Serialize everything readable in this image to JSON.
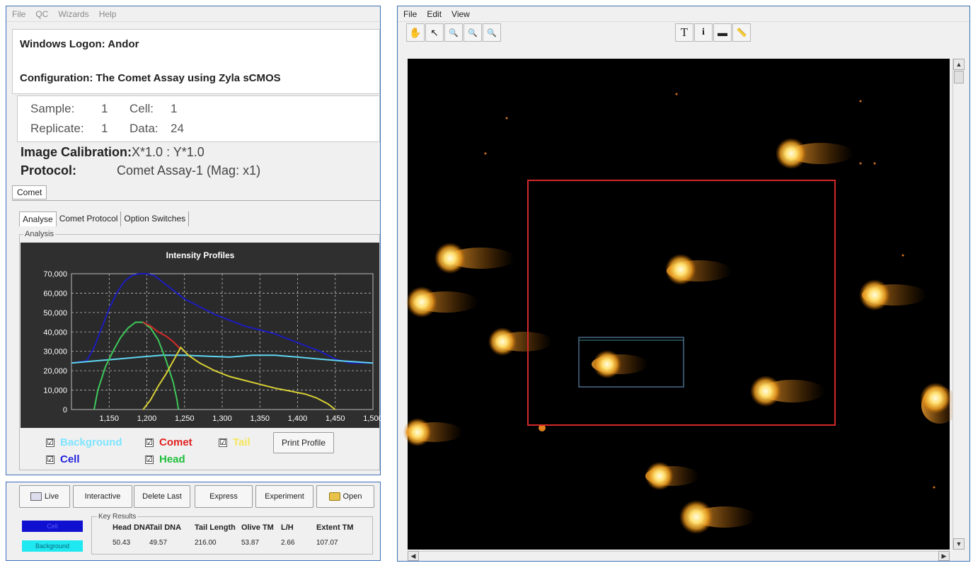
{
  "left_panel": {
    "menu": [
      "File",
      "QC",
      "Wizards",
      "Help"
    ],
    "logon_label": "Windows Logon:",
    "logon_value": "Andor",
    "config_label": "Configuration:",
    "config_value": "The Comet Assay using Zyla sCMOS",
    "sample": {
      "sample_label": "Sample:",
      "sample_value": "1",
      "cell_label": "Cell:",
      "cell_value": "1",
      "replicate_label": "Replicate:",
      "replicate_value": "1",
      "data_label": "Data:",
      "data_value": "24"
    },
    "calibration_label": "Image Calibration:",
    "calibration_value": "X*1.0 : Y*1.0",
    "protocol_label": "Protocol:",
    "protocol_value": "Comet Assay-1 (Mag: x1)",
    "main_tab": "Comet",
    "sub_tabs": [
      "Analyse",
      "Comet Protocol",
      "Option Switches"
    ],
    "group_label": "Analysis",
    "checkboxes": [
      {
        "label": "Background",
        "color": "#7fe5ff",
        "checked": true
      },
      {
        "label": "Comet",
        "color": "#e02020",
        "checked": true
      },
      {
        "label": "Tail",
        "color": "#f5e65a",
        "checked": true
      },
      {
        "label": "Cell",
        "color": "#2222dd",
        "checked": true
      },
      {
        "label": "Head",
        "color": "#1fbf3a",
        "checked": true
      }
    ],
    "print_button": "Print Profile",
    "check_glyph": "☑"
  },
  "chart_data": {
    "type": "line",
    "title": "Intensity Profiles",
    "xlabel": "",
    "ylabel": "",
    "xlim": [
      1100,
      1500
    ],
    "ylim": [
      0,
      70000
    ],
    "x_ticks": [
      "1,150",
      "1,200",
      "1,250",
      "1,300",
      "1,350",
      "1,400",
      "1,450",
      "1,500"
    ],
    "y_ticks": [
      "0",
      "10,000",
      "20,000",
      "30,000",
      "40,000",
      "50,000",
      "60,000",
      "70,000"
    ],
    "grid": true,
    "series": [
      {
        "name": "Cell",
        "color": "#1c1cbf",
        "points": [
          [
            1100,
            24000
          ],
          [
            1120,
            25000
          ],
          [
            1130,
            32000
          ],
          [
            1140,
            42000
          ],
          [
            1150,
            52000
          ],
          [
            1160,
            60000
          ],
          [
            1170,
            66000
          ],
          [
            1180,
            69000
          ],
          [
            1190,
            70000
          ],
          [
            1200,
            70000
          ],
          [
            1210,
            69000
          ],
          [
            1220,
            66000
          ],
          [
            1230,
            63000
          ],
          [
            1240,
            60000
          ],
          [
            1250,
            57000
          ],
          [
            1270,
            53000
          ],
          [
            1290,
            49000
          ],
          [
            1310,
            46000
          ],
          [
            1330,
            43000
          ],
          [
            1350,
            41000
          ],
          [
            1370,
            39000
          ],
          [
            1390,
            36000
          ],
          [
            1410,
            33000
          ],
          [
            1430,
            30000
          ],
          [
            1450,
            26000
          ],
          [
            1470,
            24000
          ],
          [
            1500,
            24000
          ]
        ]
      },
      {
        "name": "Background",
        "color": "#5fd6f0",
        "points": [
          [
            1100,
            24000
          ],
          [
            1130,
            25000
          ],
          [
            1160,
            26000
          ],
          [
            1190,
            27000
          ],
          [
            1220,
            28000
          ],
          [
            1250,
            28000
          ],
          [
            1280,
            27500
          ],
          [
            1310,
            27000
          ],
          [
            1340,
            28000
          ],
          [
            1370,
            28000
          ],
          [
            1400,
            27000
          ],
          [
            1430,
            26000
          ],
          [
            1460,
            25000
          ],
          [
            1500,
            24000
          ]
        ]
      },
      {
        "name": "Head",
        "color": "#3ec85a",
        "points": [
          [
            1130,
            0
          ],
          [
            1135,
            10000
          ],
          [
            1145,
            22000
          ],
          [
            1155,
            30000
          ],
          [
            1165,
            37000
          ],
          [
            1175,
            42000
          ],
          [
            1185,
            45000
          ],
          [
            1195,
            45000
          ],
          [
            1205,
            42000
          ],
          [
            1215,
            36000
          ],
          [
            1225,
            26000
          ],
          [
            1235,
            14000
          ],
          [
            1240,
            5000
          ],
          [
            1242,
            0
          ]
        ]
      },
      {
        "name": "Comet",
        "color": "#d42a2a",
        "points": [
          [
            1195,
            45000
          ],
          [
            1205,
            43000
          ],
          [
            1215,
            40000
          ],
          [
            1225,
            38000
          ],
          [
            1235,
            35000
          ],
          [
            1245,
            31000
          ]
        ]
      },
      {
        "name": "Tail",
        "color": "#d8cf35",
        "points": [
          [
            1195,
            0
          ],
          [
            1205,
            5000
          ],
          [
            1215,
            12000
          ],
          [
            1225,
            18000
          ],
          [
            1235,
            25000
          ],
          [
            1245,
            32000
          ],
          [
            1255,
            28000
          ],
          [
            1270,
            24000
          ],
          [
            1290,
            20000
          ],
          [
            1310,
            17000
          ],
          [
            1330,
            15000
          ],
          [
            1350,
            13000
          ],
          [
            1370,
            11000
          ],
          [
            1390,
            9500
          ],
          [
            1410,
            8000
          ],
          [
            1425,
            6000
          ],
          [
            1440,
            3000
          ],
          [
            1450,
            0
          ]
        ]
      }
    ]
  },
  "bottom_panel": {
    "buttons": [
      "Live",
      "Interactive",
      "Delete Last",
      "Express",
      "Experiment",
      "Open"
    ],
    "key_results_label": "Key Results",
    "swatches": [
      {
        "label": "Cell",
        "color": "#1010d0",
        "text_color": "#5a5aff"
      },
      {
        "label": "Background",
        "color": "#20e8f0",
        "text_color": "#086a80"
      }
    ],
    "headers": [
      "Head DNA",
      "Tail DNA",
      "Tail Length",
      "Olive TM",
      "L/H",
      "Extent TM"
    ],
    "values": [
      "50.43",
      "49.57",
      "216.00",
      "53.87",
      "2.66",
      "107.07"
    ]
  },
  "right_window": {
    "menu": [
      "File",
      "Edit",
      "View"
    ],
    "tools": [
      {
        "name": "hand-icon",
        "glyph": "✋"
      },
      {
        "name": "pointer-icon",
        "glyph": "↖"
      },
      {
        "name": "zoom-icon",
        "glyph": "🔍"
      },
      {
        "name": "zoom-in-icon",
        "glyph": "🔍"
      },
      {
        "name": "zoom-out-icon",
        "glyph": "🔍"
      }
    ],
    "tools_right": [
      {
        "name": "text-tool-icon",
        "glyph": "T"
      },
      {
        "name": "info-icon",
        "glyph": "i"
      },
      {
        "name": "scalebar-icon",
        "glyph": "▬"
      },
      {
        "name": "ruler-icon",
        "glyph": "📏"
      }
    ],
    "scroll_glyphs": {
      "up": "▲",
      "down": "▼",
      "left": "◀",
      "right": "▶"
    }
  }
}
